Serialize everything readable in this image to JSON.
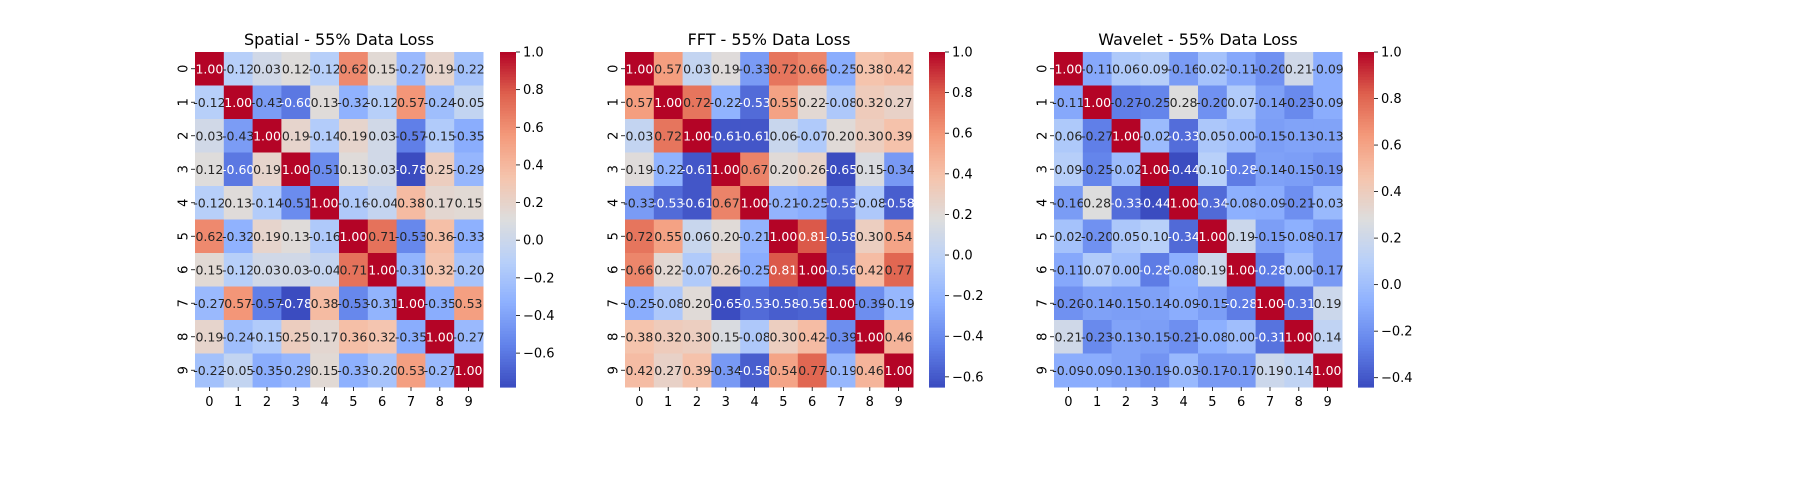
{
  "chart_data": [
    {
      "type": "heatmap",
      "title": "Spatial - 55% Data Loss",
      "colormap": "coolwarm",
      "x_labels": [
        "0",
        "1",
        "2",
        "3",
        "4",
        "5",
        "6",
        "7",
        "8",
        "9"
      ],
      "y_labels": [
        "0",
        "1",
        "2",
        "3",
        "4",
        "5",
        "6",
        "7",
        "8",
        "9"
      ],
      "vmin": -0.78,
      "vmax": 1.0,
      "colorbar_ticks": [
        "-0.6",
        "-0.4",
        "-0.2",
        "0.0",
        "0.2",
        "0.4",
        "0.6",
        "0.8",
        "1.0"
      ],
      "matrix": [
        [
          1.0,
          -0.12,
          0.03,
          0.12,
          -0.12,
          0.62,
          0.15,
          -0.27,
          0.19,
          -0.22
        ],
        [
          -0.12,
          1.0,
          -0.43,
          -0.6,
          0.13,
          -0.32,
          -0.12,
          0.57,
          -0.24,
          -0.05
        ],
        [
          0.03,
          -0.43,
          1.0,
          0.19,
          -0.14,
          0.19,
          0.03,
          -0.57,
          -0.15,
          -0.35
        ],
        [
          0.12,
          -0.6,
          0.19,
          1.0,
          -0.51,
          0.13,
          0.03,
          -0.78,
          0.25,
          -0.29
        ],
        [
          -0.12,
          0.13,
          -0.14,
          -0.51,
          1.0,
          -0.16,
          -0.04,
          0.38,
          0.17,
          0.15
        ],
        [
          0.62,
          -0.32,
          0.19,
          0.13,
          -0.16,
          1.0,
          0.71,
          -0.53,
          0.36,
          -0.33
        ],
        [
          0.15,
          -0.12,
          0.03,
          0.03,
          -0.04,
          0.71,
          1.0,
          -0.31,
          0.32,
          -0.2
        ],
        [
          -0.27,
          0.57,
          -0.57,
          -0.78,
          0.38,
          -0.53,
          -0.31,
          1.0,
          -0.35,
          0.53
        ],
        [
          0.19,
          -0.24,
          -0.15,
          0.25,
          0.17,
          0.36,
          0.32,
          -0.35,
          1.0,
          -0.27
        ],
        [
          -0.22,
          -0.05,
          -0.35,
          -0.29,
          0.15,
          -0.33,
          -0.2,
          0.53,
          -0.27,
          1.0
        ]
      ]
    },
    {
      "type": "heatmap",
      "title": "FFT - 55% Data Loss",
      "colormap": "coolwarm",
      "x_labels": [
        "0",
        "1",
        "2",
        "3",
        "4",
        "5",
        "6",
        "7",
        "8",
        "9"
      ],
      "y_labels": [
        "0",
        "1",
        "2",
        "3",
        "4",
        "5",
        "6",
        "7",
        "8",
        "9"
      ],
      "vmin": -0.65,
      "vmax": 1.0,
      "colorbar_ticks": [
        "-0.6",
        "-0.4",
        "-0.2",
        "0.0",
        "0.2",
        "0.4",
        "0.6",
        "0.8",
        "1.0"
      ],
      "matrix": [
        [
          1.0,
          0.57,
          0.03,
          0.19,
          -0.33,
          0.72,
          0.66,
          -0.25,
          0.38,
          0.42
        ],
        [
          0.57,
          1.0,
          0.72,
          -0.22,
          -0.53,
          0.55,
          0.22,
          -0.08,
          0.32,
          0.27
        ],
        [
          0.03,
          0.72,
          1.0,
          -0.61,
          -0.61,
          0.06,
          -0.07,
          0.2,
          0.3,
          0.39
        ],
        [
          0.19,
          -0.22,
          -0.61,
          1.0,
          0.67,
          0.2,
          0.26,
          -0.65,
          0.15,
          -0.34
        ],
        [
          -0.33,
          -0.53,
          -0.61,
          0.67,
          1.0,
          -0.21,
          -0.25,
          -0.53,
          -0.08,
          -0.58
        ],
        [
          0.72,
          0.55,
          0.06,
          0.2,
          -0.21,
          1.0,
          0.81,
          -0.58,
          0.3,
          0.54
        ],
        [
          0.66,
          0.22,
          -0.07,
          0.26,
          -0.25,
          0.81,
          1.0,
          -0.56,
          0.42,
          0.77
        ],
        [
          -0.25,
          -0.08,
          0.2,
          -0.65,
          -0.53,
          -0.58,
          -0.56,
          1.0,
          -0.39,
          -0.19
        ],
        [
          0.38,
          0.32,
          0.3,
          0.15,
          -0.08,
          0.3,
          0.42,
          -0.39,
          1.0,
          0.46
        ],
        [
          0.42,
          0.27,
          0.39,
          -0.34,
          -0.58,
          0.54,
          0.77,
          -0.19,
          0.46,
          1.0
        ]
      ]
    },
    {
      "type": "heatmap",
      "title": "Wavelet - 55% Data Loss",
      "colormap": "coolwarm",
      "x_labels": [
        "0",
        "1",
        "2",
        "3",
        "4",
        "5",
        "6",
        "7",
        "8",
        "9"
      ],
      "y_labels": [
        "0",
        "1",
        "2",
        "3",
        "4",
        "5",
        "6",
        "7",
        "8",
        "9"
      ],
      "vmin": -0.44,
      "vmax": 1.0,
      "colorbar_ticks": [
        "-0.4",
        "-0.2",
        "0.0",
        "0.2",
        "0.4",
        "0.6",
        "0.8",
        "1.0"
      ],
      "matrix": [
        [
          1.0,
          -0.11,
          0.06,
          0.09,
          -0.16,
          0.02,
          -0.11,
          -0.2,
          0.21,
          -0.09
        ],
        [
          -0.11,
          1.0,
          -0.27,
          -0.25,
          0.28,
          -0.2,
          0.07,
          -0.14,
          -0.23,
          -0.09
        ],
        [
          0.06,
          -0.27,
          1.0,
          -0.02,
          -0.33,
          0.05,
          -0.0,
          -0.15,
          -0.13,
          -0.13
        ],
        [
          0.09,
          -0.25,
          -0.02,
          1.0,
          -0.44,
          0.1,
          -0.28,
          -0.14,
          -0.15,
          -0.19
        ],
        [
          -0.16,
          0.28,
          -0.33,
          -0.44,
          1.0,
          -0.34,
          -0.08,
          -0.09,
          -0.21,
          -0.03
        ],
        [
          0.02,
          -0.2,
          0.05,
          0.1,
          -0.34,
          1.0,
          0.19,
          -0.15,
          -0.08,
          -0.17
        ],
        [
          -0.11,
          0.07,
          -0.0,
          -0.28,
          -0.08,
          0.19,
          1.0,
          -0.28,
          -0.0,
          -0.17
        ],
        [
          -0.2,
          -0.14,
          -0.15,
          -0.14,
          -0.09,
          -0.15,
          -0.28,
          1.0,
          -0.31,
          0.19
        ],
        [
          0.21,
          -0.23,
          -0.13,
          -0.15,
          -0.21,
          -0.08,
          -0.0,
          -0.31,
          1.0,
          0.14
        ],
        [
          -0.09,
          -0.09,
          -0.13,
          -0.19,
          -0.03,
          -0.17,
          -0.17,
          0.19,
          0.14,
          1.0
        ]
      ]
    }
  ]
}
